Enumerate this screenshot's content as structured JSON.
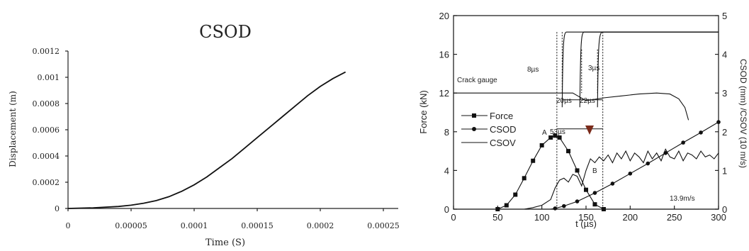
{
  "chart_data": [
    {
      "type": "line",
      "title": "CSOD",
      "xlabel": "Time (S)",
      "ylabel": "Displacement (m)",
      "xlim": [
        0,
        0.00025
      ],
      "ylim": [
        0,
        0.0012
      ],
      "x_ticks": [
        "0",
        "0.00005",
        "0.0001",
        "0.00015",
        "0.0002",
        "0.00025"
      ],
      "y_ticks": [
        "0",
        "0.0002",
        "0.0004",
        "0.0006",
        "0.0008",
        "0.001",
        "0.0012"
      ],
      "series": [
        {
          "x": [
            0,
            2e-05,
            4e-05,
            5e-05,
            6e-05,
            7e-05,
            8e-05,
            9e-05,
            0.0001,
            0.00011,
            0.00012,
            0.00013,
            0.00014,
            0.00015,
            0.00016,
            0.00017,
            0.00018,
            0.00019,
            0.0002,
            0.00021,
            0.00022
          ],
          "y": [
            0,
            5e-06,
            1.5e-05,
            2.5e-05,
            4e-05,
            6e-05,
            9e-05,
            0.00013,
            0.00018,
            0.00024,
            0.00031,
            0.00038,
            0.00046,
            0.00054,
            0.00062,
            0.0007,
            0.00078,
            0.00086,
            0.00093,
            0.00099,
            0.00104
          ]
        }
      ]
    },
    {
      "type": "line",
      "xlabel": "t (µs)",
      "ylabel": "Force (kN)",
      "ylabel_right": "CSOD (mm) /CSOV (10 m/s)",
      "xlim": [
        0,
        300
      ],
      "ylim": [
        0,
        20
      ],
      "ylim_right": [
        0,
        5
      ],
      "x_ticks": [
        "0",
        "50",
        "100",
        "150",
        "200",
        "250",
        "300"
      ],
      "y_ticks": [
        "0",
        "4",
        "8",
        "12",
        "16",
        "20"
      ],
      "y_ticks_right": [
        "0",
        "1",
        "2",
        "3",
        "4",
        "5"
      ],
      "legend": [
        "Force",
        "CSOD",
        "CSOV"
      ],
      "legend_position": "left",
      "series": [
        {
          "name": "Force",
          "marker": "square",
          "x": [
            0,
            50,
            60,
            70,
            80,
            90,
            100,
            110,
            115,
            120,
            130,
            140,
            150,
            160,
            170,
            300
          ],
          "y": [
            0,
            0,
            0.4,
            1.5,
            3.2,
            5.0,
            6.6,
            7.4,
            7.6,
            7.4,
            6.0,
            4.0,
            2.0,
            0.5,
            0,
            0
          ]
        },
        {
          "name": "CSOD",
          "marker": "circle",
          "axis": "right",
          "x": [
            0,
            110,
            115,
            125,
            140,
            160,
            180,
            200,
            220,
            240,
            260,
            280,
            300
          ],
          "y": [
            0,
            0,
            0.02,
            0.08,
            0.2,
            0.42,
            0.66,
            0.92,
            1.18,
            1.45,
            1.72,
            1.98,
            2.25
          ]
        },
        {
          "name": "CSOV",
          "axis": "right",
          "x": [
            0,
            80,
            90,
            100,
            110,
            115,
            120,
            125,
            130,
            135,
            140,
            145,
            150,
            155,
            160,
            165,
            170,
            175,
            180,
            185,
            190,
            195,
            200,
            205,
            210,
            215,
            220,
            225,
            230,
            235,
            240,
            245,
            250,
            255,
            260,
            265,
            270,
            275,
            280,
            285,
            290,
            295,
            300
          ],
          "y": [
            0,
            0,
            0.04,
            0.1,
            0.25,
            0.55,
            0.75,
            0.8,
            0.7,
            0.9,
            0.85,
            0.6,
            1.0,
            1.3,
            1.2,
            1.35,
            1.25,
            1.4,
            1.2,
            1.45,
            1.3,
            1.5,
            1.25,
            1.45,
            1.35,
            1.2,
            1.5,
            1.3,
            1.45,
            1.25,
            1.55,
            1.35,
            1.3,
            1.5,
            1.25,
            1.45,
            1.4,
            1.3,
            1.5,
            1.35,
            1.4,
            1.3,
            1.45
          ]
        },
        {
          "name": "Crack gauge",
          "x": [
            0,
            135,
            150,
            170,
            190,
            210,
            230,
            245,
            255,
            262,
            266
          ],
          "y": [
            12,
            12,
            11.2,
            11.5,
            11.7,
            11.9,
            12.0,
            11.9,
            11.4,
            10.5,
            9.2
          ]
        }
      ],
      "gauge_steps": [
        {
          "x_start": 123,
          "x_end": 128
        },
        {
          "x_start": 143,
          "x_end": 148
        },
        {
          "x_start": 163,
          "x_end": 169
        }
      ],
      "annotations": {
        "crack_gauge": "Crack gauge",
        "t8": "8µs",
        "t3": "3µs",
        "t20": "20µs",
        "t22": "22µs",
        "t53": "53µs",
        "point_a": "A",
        "point_b": "B",
        "velocity": "13.9m/s"
      }
    }
  ]
}
